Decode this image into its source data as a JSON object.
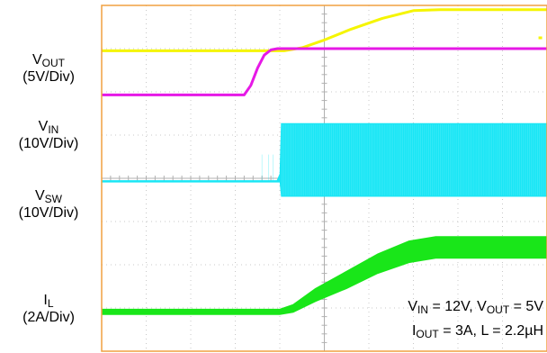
{
  "chart_data": {
    "type": "line",
    "title": "",
    "xlabel": "",
    "ylabel": "",
    "grid": true,
    "grid_divisions": {
      "x": 10,
      "y": 8
    },
    "x_range_div": [
      0,
      10
    ],
    "y_range_div": [
      0,
      8
    ],
    "series": [
      {
        "name_main": "V",
        "name_sub": "OUT",
        "scale": "(5V/Div)",
        "color": "#f5f500",
        "style": "line",
        "x": [
          0,
          4.1,
          4.5,
          5.0,
          5.6,
          6.3,
          7.0,
          7.6,
          10
        ],
        "y": [
          6.95,
          6.95,
          7.02,
          7.2,
          7.45,
          7.7,
          7.88,
          7.9,
          7.9
        ],
        "extra_dots": [
          [
            9.85,
            7.25
          ]
        ]
      },
      {
        "name_main": "V",
        "name_sub": "IN",
        "scale": "(10V/Div)",
        "color": "#e619e6",
        "style": "line",
        "x": [
          0,
          3.2,
          3.35,
          3.5,
          3.65,
          3.8,
          3.95,
          4.2,
          10
        ],
        "y": [
          5.93,
          5.93,
          6.15,
          6.55,
          6.85,
          6.97,
          7.0,
          7.0,
          7.0
        ],
        "extra_dots": []
      },
      {
        "name_main": "V",
        "name_sub": "SW",
        "scale": "(10V/Div)",
        "color": "#19e6f5",
        "style": "switching",
        "x": [
          0,
          3.95,
          4.02,
          4.05,
          10
        ],
        "y_low": [
          3.93,
          3.93,
          3.93,
          3.6,
          3.6
        ],
        "y_high": [
          3.93,
          3.93,
          4.1,
          5.25,
          5.25
        ],
        "extra_dots": []
      },
      {
        "name_main": "I",
        "name_sub": "L",
        "scale": "(2A/Div)",
        "color": "#19e619",
        "style": "band",
        "x": [
          0,
          4.0,
          4.3,
          4.8,
          5.5,
          6.2,
          6.9,
          7.5,
          8.0,
          10
        ],
        "y_low": [
          0.85,
          0.85,
          0.9,
          1.15,
          1.45,
          1.8,
          2.05,
          2.15,
          2.15,
          2.15
        ],
        "y_high": [
          0.97,
          0.97,
          1.08,
          1.45,
          1.85,
          2.25,
          2.55,
          2.65,
          2.65,
          2.65
        ],
        "extra_dots": []
      }
    ],
    "annotation": {
      "line1": [
        {
          "main": "V",
          "sub": "IN"
        },
        {
          "main": " = 12V, V",
          "sub": ""
        },
        {
          "main": "",
          "sub": "OUT"
        },
        {
          "main": " = 5V",
          "sub": ""
        }
      ],
      "line2": [
        {
          "main": "I",
          "sub": "OUT"
        },
        {
          "main": " = 3A, L = 2.2µH",
          "sub": ""
        }
      ]
    },
    "colors": {
      "frame": "#f0a040",
      "grid": "#c8c8c8",
      "center": "#b0b0b0"
    }
  }
}
